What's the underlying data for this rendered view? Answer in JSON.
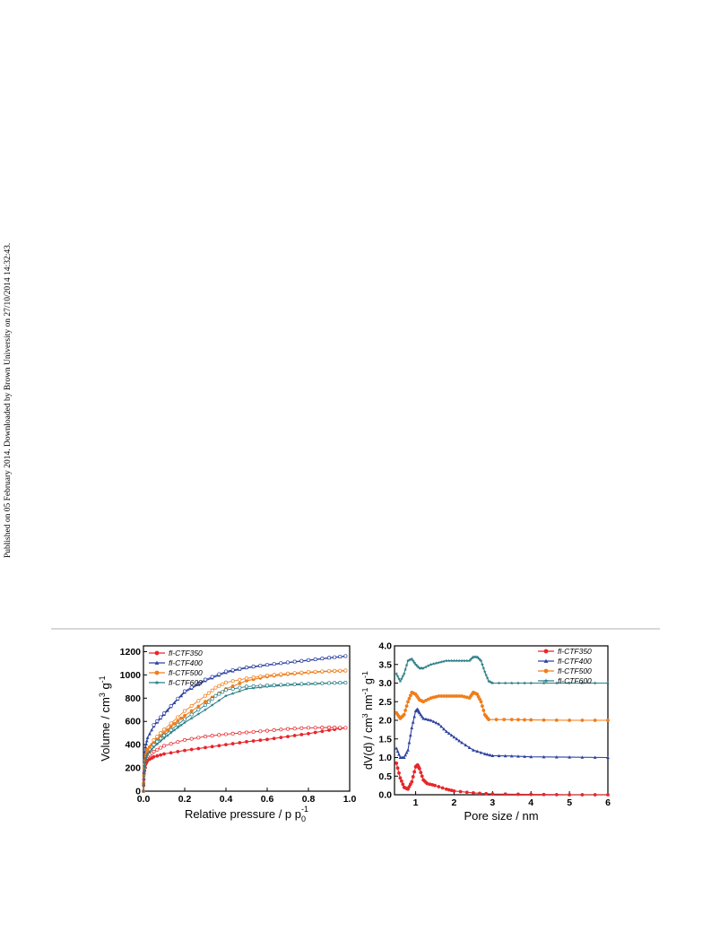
{
  "side_note": "Published on 05 February 2014. Downloaded by Brown University on 27/10/2014 14:32:43.",
  "chart_data": [
    {
      "type": "line",
      "xlabel": "Relative pressure / p p",
      "xlabel_sub": "0",
      "xlabel_sup": "-1",
      "ylabel": "Volume / cm",
      "ylabel_sup1": "3",
      "ylabel_mid": " g",
      "ylabel_sup2": "-1",
      "xlim": [
        0,
        1.0
      ],
      "ylim": [
        0,
        1250
      ],
      "xticks": [
        "0.0",
        "0.2",
        "0.4",
        "0.6",
        "0.8",
        "1.0"
      ],
      "yticks": [
        "0",
        "200",
        "400",
        "600",
        "800",
        "1000",
        "1200"
      ],
      "legend_position": "top-left",
      "series": [
        {
          "name": "fl-CTF350",
          "color": "#e8262a",
          "marker": "circle",
          "adsorption": [
            [
              0,
              0
            ],
            [
              0.003,
              150
            ],
            [
              0.01,
              230
            ],
            [
              0.02,
              265
            ],
            [
              0.05,
              295
            ],
            [
              0.1,
              320
            ],
            [
              0.2,
              350
            ],
            [
              0.3,
              375
            ],
            [
              0.4,
              400
            ],
            [
              0.5,
              425
            ],
            [
              0.6,
              445
            ],
            [
              0.7,
              470
            ],
            [
              0.8,
              495
            ],
            [
              0.9,
              525
            ],
            [
              0.98,
              545
            ]
          ],
          "desorption": [
            [
              0.98,
              545
            ],
            [
              0.9,
              548
            ],
            [
              0.8,
              545
            ],
            [
              0.7,
              535
            ],
            [
              0.6,
              520
            ],
            [
              0.5,
              505
            ],
            [
              0.4,
              490
            ],
            [
              0.3,
              470
            ],
            [
              0.2,
              440
            ],
            [
              0.1,
              390
            ],
            [
              0.05,
              340
            ],
            [
              0.02,
              300
            ]
          ]
        },
        {
          "name": "fl-CTF400",
          "color": "#2e43a0",
          "marker": "triangle",
          "adsorption": [
            [
              0,
              0
            ],
            [
              0.003,
              250
            ],
            [
              0.01,
              380
            ],
            [
              0.02,
              460
            ],
            [
              0.05,
              560
            ],
            [
              0.1,
              660
            ],
            [
              0.15,
              760
            ],
            [
              0.2,
              850
            ],
            [
              0.3,
              950
            ],
            [
              0.4,
              1020
            ],
            [
              0.5,
              1060
            ],
            [
              0.6,
              1085
            ],
            [
              0.7,
              1105
            ],
            [
              0.8,
              1125
            ],
            [
              0.9,
              1145
            ],
            [
              0.98,
              1160
            ]
          ],
          "desorption": [
            [
              0.98,
              1162
            ],
            [
              0.9,
              1148
            ],
            [
              0.8,
              1128
            ],
            [
              0.7,
              1108
            ],
            [
              0.6,
              1088
            ],
            [
              0.5,
              1065
            ],
            [
              0.4,
              1030
            ],
            [
              0.3,
              960
            ],
            [
              0.2,
              860
            ],
            [
              0.1,
              670
            ],
            [
              0.05,
              570
            ]
          ]
        },
        {
          "name": "fl-CTF500",
          "color": "#f07d1a",
          "marker": "circle",
          "adsorption": [
            [
              0,
              0
            ],
            [
              0.003,
              200
            ],
            [
              0.01,
              300
            ],
            [
              0.02,
              360
            ],
            [
              0.05,
              420
            ],
            [
              0.1,
              500
            ],
            [
              0.15,
              580
            ],
            [
              0.2,
              650
            ],
            [
              0.3,
              770
            ],
            [
              0.4,
              880
            ],
            [
              0.5,
              950
            ],
            [
              0.6,
              985
            ],
            [
              0.7,
              1005
            ],
            [
              0.8,
              1020
            ],
            [
              0.9,
              1030
            ],
            [
              0.98,
              1035
            ]
          ],
          "desorption": [
            [
              0.98,
              1038
            ],
            [
              0.9,
              1034
            ],
            [
              0.8,
              1025
            ],
            [
              0.7,
              1012
            ],
            [
              0.6,
              995
            ],
            [
              0.5,
              970
            ],
            [
              0.4,
              935
            ],
            [
              0.35,
              890
            ],
            [
              0.3,
              820
            ],
            [
              0.2,
              690
            ],
            [
              0.1,
              530
            ],
            [
              0.05,
              440
            ]
          ]
        },
        {
          "name": "fl-CTF600",
          "color": "#2a7e86",
          "marker": "star",
          "adsorption": [
            [
              0,
              0
            ],
            [
              0.003,
              180
            ],
            [
              0.01,
              270
            ],
            [
              0.02,
              320
            ],
            [
              0.05,
              380
            ],
            [
              0.1,
              455
            ],
            [
              0.15,
              525
            ],
            [
              0.2,
              590
            ],
            [
              0.3,
              700
            ],
            [
              0.4,
              820
            ],
            [
              0.5,
              880
            ],
            [
              0.6,
              900
            ],
            [
              0.7,
              912
            ],
            [
              0.8,
              920
            ],
            [
              0.9,
              928
            ],
            [
              0.98,
              932
            ]
          ],
          "desorption": [
            [
              0.98,
              933
            ],
            [
              0.9,
              930
            ],
            [
              0.8,
              925
            ],
            [
              0.7,
              918
            ],
            [
              0.6,
              910
            ],
            [
              0.5,
              900
            ],
            [
              0.4,
              870
            ],
            [
              0.35,
              820
            ],
            [
              0.3,
              740
            ],
            [
              0.2,
              620
            ],
            [
              0.1,
              480
            ],
            [
              0.05,
              400
            ]
          ]
        }
      ]
    },
    {
      "type": "line",
      "xlabel": "Pore size / nm",
      "ylabel": "dV(d) / cm",
      "ylabel_sup1": "3",
      "ylabel_mid": " nm",
      "ylabel_sup2": "-1",
      "ylabel_end": " g",
      "ylabel_sup3": "-1",
      "xlim": [
        0.45,
        6
      ],
      "ylim": [
        0,
        4.0
      ],
      "xticks": [
        "1",
        "2",
        "3",
        "4",
        "5",
        "6"
      ],
      "yticks": [
        "0.0",
        "0.5",
        "1.0",
        "1.5",
        "2.0",
        "2.5",
        "3.0",
        "3.5",
        "4.0"
      ],
      "legend_position": "top-right",
      "series": [
        {
          "name": "fl-CTF350",
          "color": "#e8262a",
          "marker": "circle",
          "points": [
            [
              0.5,
              0.85
            ],
            [
              0.6,
              0.45
            ],
            [
              0.7,
              0.2
            ],
            [
              0.8,
              0.15
            ],
            [
              0.9,
              0.35
            ],
            [
              1.0,
              0.75
            ],
            [
              1.05,
              0.8
            ],
            [
              1.1,
              0.7
            ],
            [
              1.2,
              0.4
            ],
            [
              1.3,
              0.3
            ],
            [
              1.5,
              0.25
            ],
            [
              1.8,
              0.15
            ],
            [
              2.0,
              0.1
            ],
            [
              2.5,
              0.05
            ],
            [
              3.0,
              0.02
            ],
            [
              4.0,
              0.01
            ],
            [
              5.0,
              0.0
            ],
            [
              6.0,
              0.0
            ]
          ]
        },
        {
          "name": "fl-CTF400",
          "color": "#2e43a0",
          "marker": "triangle",
          "points": [
            [
              0.5,
              1.25
            ],
            [
              0.6,
              1.0
            ],
            [
              0.7,
              1.0
            ],
            [
              0.8,
              1.2
            ],
            [
              0.9,
              1.8
            ],
            [
              1.0,
              2.25
            ],
            [
              1.05,
              2.3
            ],
            [
              1.1,
              2.2
            ],
            [
              1.2,
              2.05
            ],
            [
              1.4,
              2.0
            ],
            [
              1.6,
              1.9
            ],
            [
              1.8,
              1.7
            ],
            [
              2.0,
              1.55
            ],
            [
              2.2,
              1.4
            ],
            [
              2.5,
              1.2
            ],
            [
              2.8,
              1.1
            ],
            [
              3.0,
              1.05
            ],
            [
              3.5,
              1.04
            ],
            [
              4.0,
              1.02
            ],
            [
              5.0,
              1.01
            ],
            [
              6.0,
              1.0
            ]
          ]
        },
        {
          "name": "fl-CTF500",
          "color": "#f07d1a",
          "marker": "circle",
          "points": [
            [
              0.5,
              2.2
            ],
            [
              0.6,
              2.05
            ],
            [
              0.7,
              2.15
            ],
            [
              0.8,
              2.5
            ],
            [
              0.9,
              2.75
            ],
            [
              1.0,
              2.7
            ],
            [
              1.1,
              2.55
            ],
            [
              1.2,
              2.5
            ],
            [
              1.4,
              2.6
            ],
            [
              1.6,
              2.65
            ],
            [
              1.8,
              2.65
            ],
            [
              2.0,
              2.65
            ],
            [
              2.2,
              2.65
            ],
            [
              2.4,
              2.6
            ],
            [
              2.5,
              2.75
            ],
            [
              2.6,
              2.7
            ],
            [
              2.7,
              2.5
            ],
            [
              2.8,
              2.15
            ],
            [
              2.9,
              2.02
            ],
            [
              3.5,
              2.02
            ],
            [
              4.0,
              2.01
            ],
            [
              5.0,
              2.0
            ],
            [
              6.0,
              2.0
            ]
          ]
        },
        {
          "name": "fl-CTF600",
          "color": "#2a7e86",
          "marker": "star",
          "points": [
            [
              0.5,
              3.25
            ],
            [
              0.6,
              3.05
            ],
            [
              0.7,
              3.25
            ],
            [
              0.8,
              3.6
            ],
            [
              0.9,
              3.65
            ],
            [
              1.0,
              3.5
            ],
            [
              1.1,
              3.4
            ],
            [
              1.2,
              3.4
            ],
            [
              1.4,
              3.5
            ],
            [
              1.6,
              3.55
            ],
            [
              1.8,
              3.6
            ],
            [
              2.0,
              3.6
            ],
            [
              2.2,
              3.6
            ],
            [
              2.4,
              3.6
            ],
            [
              2.5,
              3.7
            ],
            [
              2.6,
              3.7
            ],
            [
              2.7,
              3.6
            ],
            [
              2.8,
              3.3
            ],
            [
              2.9,
              3.05
            ],
            [
              3.0,
              3.0
            ],
            [
              3.5,
              3.0
            ],
            [
              4.0,
              3.0
            ],
            [
              5.0,
              3.0
            ],
            [
              6.0,
              3.0
            ]
          ]
        }
      ]
    }
  ]
}
